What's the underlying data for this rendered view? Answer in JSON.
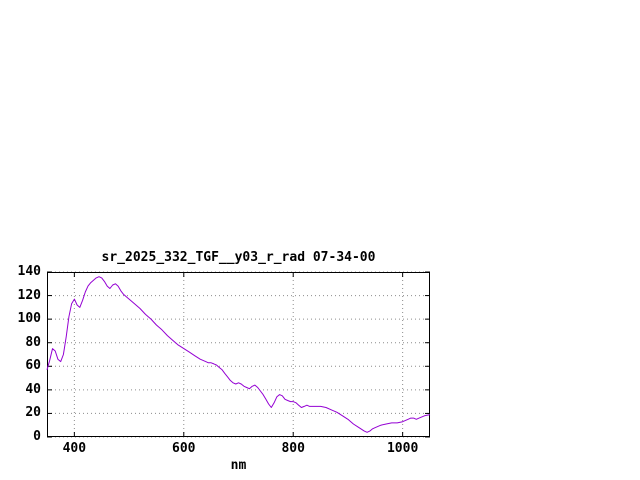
{
  "window": {
    "background": "#ffffff"
  },
  "chart_data": {
    "type": "line",
    "title": "sr_2025_332_TGF__y03_r_rad 07-34-00",
    "xlabel": "nm",
    "ylabel": "",
    "xlim": [
      350,
      1050
    ],
    "ylim": [
      0,
      140
    ],
    "xticks": [
      400,
      600,
      800,
      1000
    ],
    "yticks": [
      0,
      20,
      40,
      60,
      80,
      100,
      120,
      140
    ],
    "grid": true,
    "legend": "none",
    "line_color": "#9400d3",
    "grid_color": "#8c8c8c",
    "border_color": "#000000",
    "series": [
      {
        "points": [
          [
            350,
            57
          ],
          [
            355,
            65
          ],
          [
            360,
            75
          ],
          [
            365,
            73
          ],
          [
            370,
            66
          ],
          [
            375,
            64
          ],
          [
            380,
            70
          ],
          [
            385,
            85
          ],
          [
            390,
            102
          ],
          [
            395,
            113
          ],
          [
            400,
            117
          ],
          [
            405,
            112
          ],
          [
            410,
            110
          ],
          [
            415,
            116
          ],
          [
            420,
            123
          ],
          [
            425,
            128
          ],
          [
            430,
            131
          ],
          [
            435,
            133
          ],
          [
            440,
            135
          ],
          [
            445,
            136
          ],
          [
            450,
            135
          ],
          [
            455,
            132
          ],
          [
            460,
            128
          ],
          [
            465,
            126
          ],
          [
            470,
            129
          ],
          [
            475,
            130
          ],
          [
            480,
            128
          ],
          [
            485,
            124
          ],
          [
            490,
            121
          ],
          [
            495,
            119
          ],
          [
            500,
            117
          ],
          [
            510,
            113
          ],
          [
            520,
            109
          ],
          [
            530,
            104
          ],
          [
            540,
            100
          ],
          [
            550,
            95
          ],
          [
            560,
            91
          ],
          [
            570,
            86
          ],
          [
            580,
            82
          ],
          [
            590,
            78
          ],
          [
            600,
            75
          ],
          [
            610,
            72
          ],
          [
            620,
            69
          ],
          [
            630,
            66
          ],
          [
            640,
            64
          ],
          [
            645,
            63
          ],
          [
            650,
            63
          ],
          [
            655,
            62
          ],
          [
            660,
            61
          ],
          [
            665,
            59
          ],
          [
            670,
            57
          ],
          [
            675,
            54
          ],
          [
            680,
            51
          ],
          [
            685,
            48
          ],
          [
            690,
            46
          ],
          [
            695,
            45
          ],
          [
            700,
            46
          ],
          [
            705,
            45
          ],
          [
            710,
            43
          ],
          [
            715,
            42
          ],
          [
            720,
            41
          ],
          [
            725,
            43
          ],
          [
            730,
            44
          ],
          [
            735,
            42
          ],
          [
            740,
            39
          ],
          [
            745,
            36
          ],
          [
            750,
            32
          ],
          [
            755,
            28
          ],
          [
            760,
            25
          ],
          [
            765,
            29
          ],
          [
            770,
            34
          ],
          [
            775,
            36
          ],
          [
            780,
            35
          ],
          [
            785,
            32
          ],
          [
            790,
            31
          ],
          [
            795,
            30
          ],
          [
            800,
            30
          ],
          [
            805,
            29
          ],
          [
            810,
            27
          ],
          [
            815,
            25
          ],
          [
            820,
            26
          ],
          [
            825,
            27
          ],
          [
            830,
            26
          ],
          [
            840,
            26
          ],
          [
            850,
            26
          ],
          [
            860,
            25
          ],
          [
            870,
            23
          ],
          [
            880,
            21
          ],
          [
            890,
            18
          ],
          [
            900,
            15
          ],
          [
            910,
            11
          ],
          [
            920,
            8
          ],
          [
            930,
            5
          ],
          [
            935,
            4
          ],
          [
            940,
            5
          ],
          [
            945,
            7
          ],
          [
            950,
            8
          ],
          [
            960,
            10
          ],
          [
            970,
            11
          ],
          [
            980,
            12
          ],
          [
            990,
            12
          ],
          [
            1000,
            13
          ],
          [
            1010,
            15
          ],
          [
            1015,
            16
          ],
          [
            1020,
            16
          ],
          [
            1025,
            15
          ],
          [
            1030,
            16
          ],
          [
            1040,
            18
          ],
          [
            1050,
            19
          ]
        ]
      }
    ]
  }
}
